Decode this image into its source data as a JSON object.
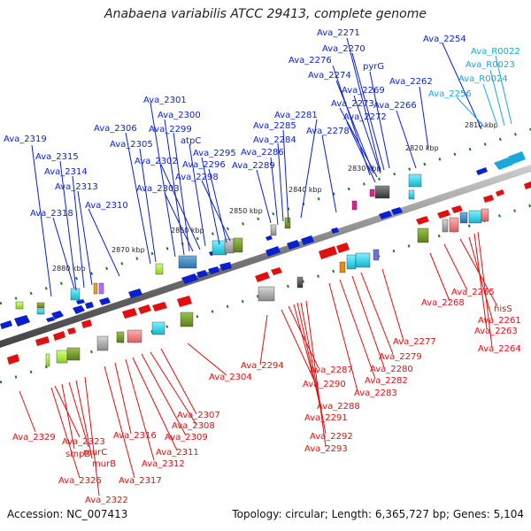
{
  "title": "Anabaena variabilis ATCC 29413, complete genome",
  "footer": {
    "accession": "Accession: NC_007413",
    "summary": "Topology: circular; Length: 6,365,727 bp; Genes: 5,104"
  },
  "colors": {
    "forward_gene": "#0a1fd0",
    "reverse_gene": "#e01010",
    "rna_gene": "#1aa8d8",
    "backbone": "#777777",
    "tick": "#1e7a1e"
  },
  "scale_labels": [
    "2810 kbp",
    "2820 kbp",
    "2830 kbp",
    "2840 kbp",
    "2850 kbp",
    "2860 kbp",
    "2870 kbp",
    "2880 kbp"
  ],
  "forward_labels": [
    "Ava_2319",
    "Ava_2315",
    "Ava_2314",
    "Ava_2313",
    "Ava_2318",
    "Ava_2310",
    "Ava_2306",
    "Ava_2305",
    "Ava_2301",
    "Ava_2300",
    "Ava_2299",
    "atpC",
    "Ava_2302",
    "Ava_2303",
    "Ava_2295",
    "Ava_2296",
    "Ava_2298",
    "Ava_2285",
    "Ava_2284",
    "Ava_2286",
    "Ava_2289",
    "Ava_2281",
    "Ava_2278",
    "Ava_2276",
    "Ava_2274",
    "Ava_2271",
    "Ava_2270",
    "pyrG",
    "Ava_2269",
    "Ava_2273",
    "Ava_2272",
    "Ava_2266",
    "Ava_2262",
    "Ava_2254"
  ],
  "rna_labels": [
    "Ava_R0022",
    "Ava_R0023",
    "Ava_R0024",
    "Ava_2256"
  ],
  "reverse_labels": [
    "Ava_2329",
    "Ava_2323",
    "smpB",
    "murC",
    "murB",
    "Ava_2326",
    "Ava_2322",
    "Ava_2317",
    "Ava_2316",
    "Ava_2312",
    "Ava_2311",
    "Ava_2309",
    "Ava_2308",
    "Ava_2307",
    "Ava_2304",
    "Ava_2294",
    "Ava_2290",
    "Ava_2287",
    "Ava_2288",
    "Ava_2291",
    "Ava_2292",
    "Ava_2293",
    "Ava_2283",
    "Ava_2282",
    "Ava_2280",
    "Ava_2279",
    "Ava_2277",
    "Ava_2268",
    "Ava_2265",
    "hisS",
    "Ava_2261",
    "Ava_2263",
    "Ava_2264"
  ]
}
